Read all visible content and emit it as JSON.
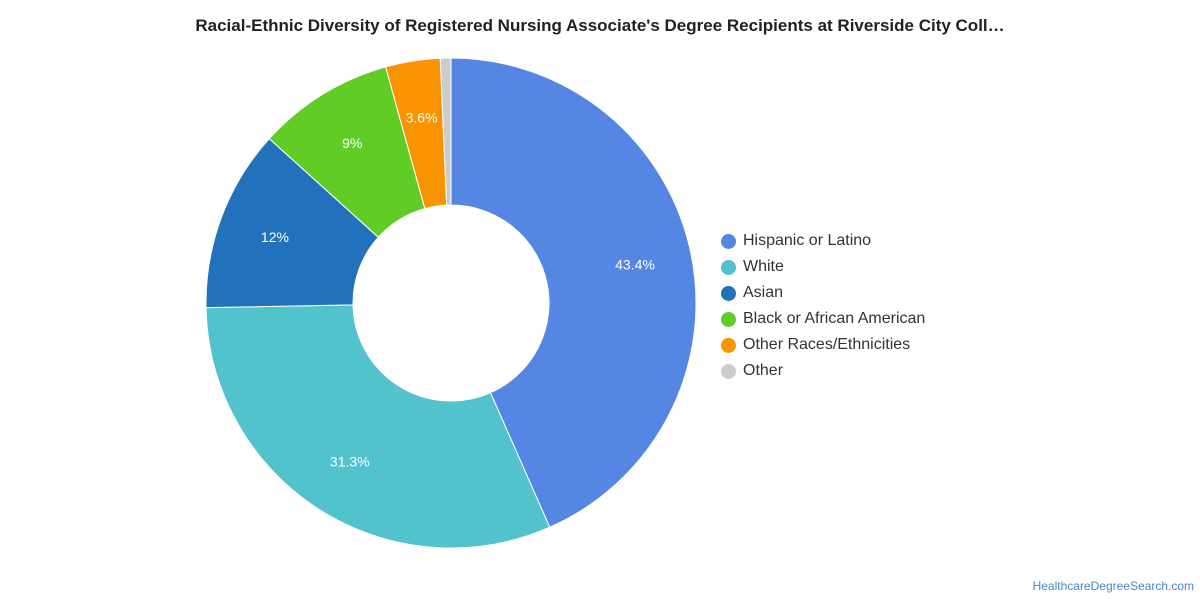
{
  "title": "Racial-Ethnic Diversity of Registered Nursing Associate's Degree Recipients at Riverside City Coll…",
  "source_link": "HealthcareDegreeSearch.com",
  "chart_data": {
    "type": "pie",
    "variant": "donut",
    "title": "Racial-Ethnic Diversity of Registered Nursing Associate's Degree Recipients at Riverside City Coll…",
    "legend_position": "right",
    "categories": [
      "Hispanic or Latino",
      "White",
      "Asian",
      "Black or African American",
      "Other Races/Ethnicities",
      "Other"
    ],
    "values": [
      43.4,
      31.3,
      12,
      9,
      3.6,
      0.7
    ],
    "data_labels": [
      "43.4%",
      "31.3%",
      "12%",
      "9%",
      "3.6%",
      ""
    ],
    "colors": [
      "#5586e3",
      "#52c2cd",
      "#2272bb",
      "#62cc26",
      "#f99300",
      "#cccccc"
    ]
  }
}
